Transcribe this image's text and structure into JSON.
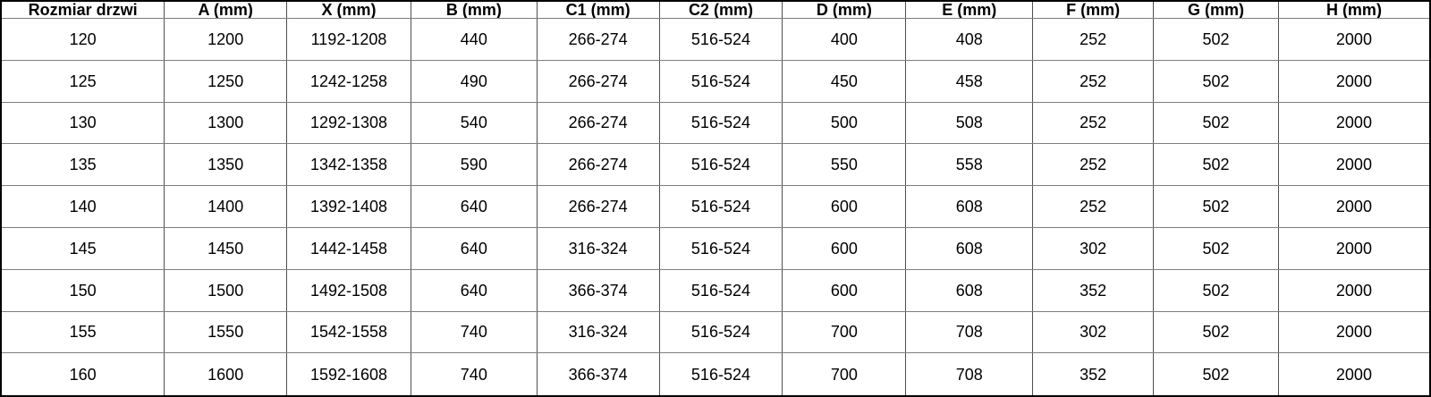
{
  "table": {
    "columns": [
      "Rozmiar drzwi",
      "A (mm)",
      "X (mm)",
      "B (mm)",
      "C1 (mm)",
      "C2 (mm)",
      "D (mm)",
      "E (mm)",
      "F (mm)",
      "G (mm)",
      "H (mm)"
    ],
    "rows": [
      [
        "120",
        "1200",
        "1192-1208",
        "440",
        "266-274",
        "516-524",
        "400",
        "408",
        "252",
        "502",
        "2000"
      ],
      [
        "125",
        "1250",
        "1242-1258",
        "490",
        "266-274",
        "516-524",
        "450",
        "458",
        "252",
        "502",
        "2000"
      ],
      [
        "130",
        "1300",
        "1292-1308",
        "540",
        "266-274",
        "516-524",
        "500",
        "508",
        "252",
        "502",
        "2000"
      ],
      [
        "135",
        "1350",
        "1342-1358",
        "590",
        "266-274",
        "516-524",
        "550",
        "558",
        "252",
        "502",
        "2000"
      ],
      [
        "140",
        "1400",
        "1392-1408",
        "640",
        "266-274",
        "516-524",
        "600",
        "608",
        "252",
        "502",
        "2000"
      ],
      [
        "145",
        "1450",
        "1442-1458",
        "640",
        "316-324",
        "516-524",
        "600",
        "608",
        "302",
        "502",
        "2000"
      ],
      [
        "150",
        "1500",
        "1492-1508",
        "640",
        "366-374",
        "516-524",
        "600",
        "608",
        "352",
        "502",
        "2000"
      ],
      [
        "155",
        "1550",
        "1542-1558",
        "740",
        "316-324",
        "516-524",
        "700",
        "708",
        "302",
        "502",
        "2000"
      ],
      [
        "160",
        "1600",
        "1592-1608",
        "740",
        "366-374",
        "516-524",
        "700",
        "708",
        "352",
        "502",
        "2000"
      ]
    ]
  },
  "colors": {
    "background": "#ffffff",
    "text": "#000000",
    "border_outer": "#000000",
    "border_inner_vertical": "#4f4f4f",
    "border_inner_horizontal": "#7e7e7e"
  }
}
